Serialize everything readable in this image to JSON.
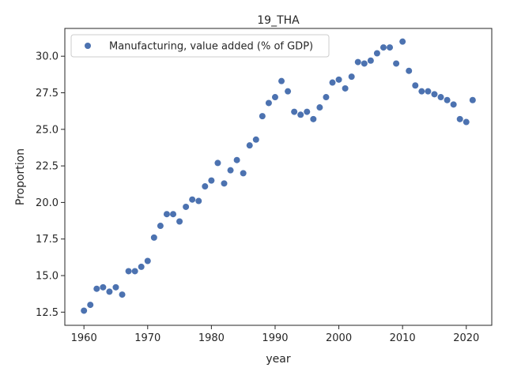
{
  "chart_data": {
    "type": "scatter",
    "title": "19_THA",
    "xlabel": "year",
    "ylabel": "Proportion",
    "xlim": [
      1957,
      2024
    ],
    "ylim": [
      11.6,
      31.9
    ],
    "xticks": [
      1960,
      1970,
      1980,
      1990,
      2000,
      2010,
      2020
    ],
    "yticks": [
      12.5,
      15.0,
      17.5,
      20.0,
      22.5,
      25.0,
      27.5,
      30.0
    ],
    "ytick_labels": [
      "12.5",
      "15.0",
      "17.5",
      "20.0",
      "22.5",
      "25.0",
      "27.5",
      "30.0"
    ],
    "grid": false,
    "legend_position": "top-left",
    "color": "#4c72b0",
    "series": [
      {
        "name": "Manufacturing, value added (% of GDP)",
        "x": [
          1960,
          1961,
          1962,
          1963,
          1964,
          1965,
          1966,
          1967,
          1968,
          1969,
          1970,
          1971,
          1972,
          1973,
          1974,
          1975,
          1976,
          1977,
          1978,
          1979,
          1980,
          1981,
          1982,
          1983,
          1984,
          1985,
          1986,
          1987,
          1988,
          1989,
          1990,
          1991,
          1992,
          1993,
          1994,
          1995,
          1996,
          1997,
          1998,
          1999,
          2000,
          2001,
          2002,
          2003,
          2004,
          2005,
          2006,
          2007,
          2008,
          2009,
          2010,
          2011,
          2012,
          2013,
          2014,
          2015,
          2016,
          2017,
          2018,
          2019,
          2020,
          2021
        ],
        "y": [
          12.6,
          13.0,
          14.1,
          14.2,
          13.9,
          14.2,
          13.7,
          15.3,
          15.3,
          15.6,
          16.0,
          17.6,
          18.4,
          19.2,
          19.2,
          18.7,
          19.7,
          20.2,
          20.1,
          21.1,
          21.5,
          22.7,
          21.3,
          22.2,
          22.9,
          22.0,
          23.9,
          24.3,
          25.9,
          26.8,
          27.2,
          28.3,
          27.6,
          26.2,
          26.0,
          26.2,
          25.7,
          26.5,
          27.2,
          28.2,
          28.4,
          27.8,
          28.6,
          29.6,
          29.5,
          29.7,
          30.2,
          30.6,
          30.6,
          29.5,
          31.0,
          29.0,
          28.0,
          27.6,
          27.6,
          27.4,
          27.2,
          27.0,
          26.7,
          25.7,
          25.5,
          27.0
        ]
      }
    ]
  }
}
